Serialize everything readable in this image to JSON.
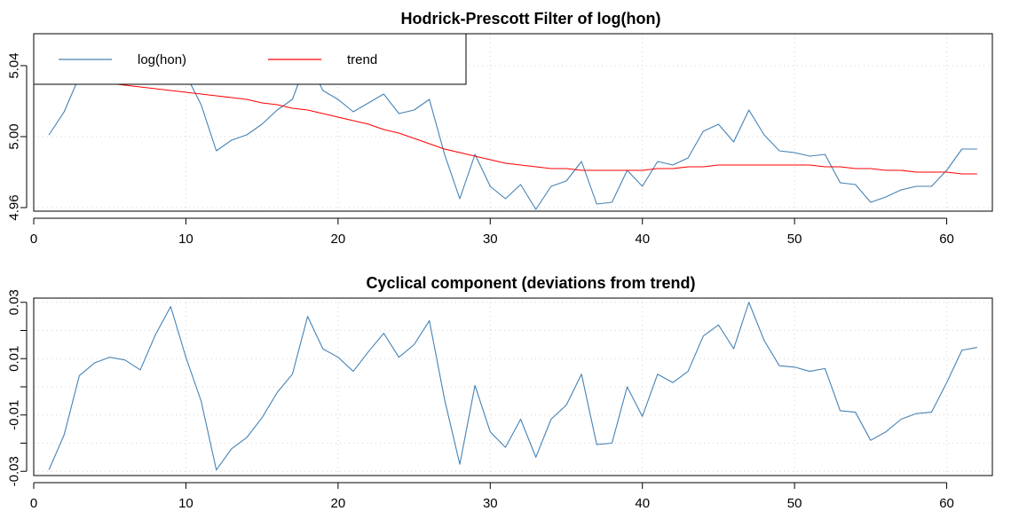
{
  "chart_data": [
    {
      "type": "line",
      "title": "Hodrick-Prescott Filter of log(hon)",
      "xlabel": "",
      "ylabel": "",
      "xlim": [
        0,
        63
      ],
      "ylim": [
        4.958,
        5.058
      ],
      "xticks": [
        0,
        10,
        20,
        30,
        40,
        50,
        60
      ],
      "yticks": [
        4.96,
        5.0,
        5.04
      ],
      "ytick_labels": [
        "4.96",
        "5.00",
        "5.04"
      ],
      "grid": true,
      "legend": {
        "placement": "top-left",
        "boxed": true
      },
      "x": [
        1,
        2,
        3,
        4,
        5,
        6,
        7,
        8,
        9,
        10,
        11,
        12,
        13,
        14,
        15,
        16,
        17,
        18,
        19,
        20,
        21,
        22,
        23,
        24,
        25,
        26,
        27,
        28,
        29,
        30,
        31,
        32,
        33,
        34,
        35,
        36,
        37,
        38,
        39,
        40,
        41,
        42,
        43,
        44,
        45,
        46,
        47,
        48,
        49,
        50,
        51,
        52,
        53,
        54,
        55,
        56,
        57,
        58,
        59,
        60,
        61,
        62
      ],
      "series": [
        {
          "name": "log(hon)",
          "color": "#4682b4",
          "values": [
            5.001,
            5.014,
            5.034,
            5.038,
            5.04,
            5.039,
            5.036,
            5.044,
            5.055,
            5.035,
            5.018,
            4.992,
            4.998,
            5.001,
            5.007,
            5.015,
            5.021,
            5.044,
            5.026,
            5.021,
            5.014,
            5.019,
            5.024,
            5.013,
            5.015,
            5.021,
            4.99,
            4.965,
            4.99,
            4.972,
            4.965,
            4.973,
            4.959,
            4.972,
            4.975,
            4.986,
            4.962,
            4.963,
            4.981,
            4.972,
            4.986,
            4.984,
            4.988,
            5.003,
            5.007,
            4.997,
            5.015,
            5.001,
            4.992,
            4.991,
            4.989,
            4.99,
            4.974,
            4.973,
            4.963,
            4.966,
            4.97,
            4.972,
            4.972,
            4.981,
            4.993,
            4.993
          ]
        },
        {
          "name": "trend",
          "color": "#ff0000",
          "values": [
            5.031,
            5.031,
            5.031,
            5.031,
            5.03,
            5.029,
            5.028,
            5.027,
            5.026,
            5.025,
            5.024,
            5.023,
            5.022,
            5.021,
            5.019,
            5.018,
            5.016,
            5.015,
            5.013,
            5.011,
            5.009,
            5.007,
            5.004,
            5.002,
            4.999,
            4.996,
            4.993,
            4.991,
            4.989,
            4.987,
            4.985,
            4.984,
            4.983,
            4.982,
            4.982,
            4.981,
            4.981,
            4.981,
            4.981,
            4.981,
            4.982,
            4.982,
            4.983,
            4.983,
            4.984,
            4.984,
            4.984,
            4.984,
            4.984,
            4.984,
            4.984,
            4.983,
            4.983,
            4.982,
            4.982,
            4.981,
            4.981,
            4.98,
            4.98,
            4.98,
            4.979,
            4.979
          ]
        }
      ]
    },
    {
      "type": "line",
      "title": "Cyclical component (deviations from trend)",
      "xlabel": "",
      "ylabel": "",
      "xlim": [
        0,
        63
      ],
      "ylim": [
        -0.0315,
        0.0315
      ],
      "xticks": [
        0,
        10,
        20,
        30,
        40,
        50,
        60
      ],
      "yticks": [
        -0.03,
        -0.02,
        -0.01,
        0.0,
        0.01,
        0.02,
        0.03
      ],
      "ytick_labels": [
        "-0.03",
        "",
        "-0.01",
        "",
        "0.01",
        "",
        "0.03"
      ],
      "grid": true,
      "x": [
        1,
        2,
        3,
        4,
        5,
        6,
        7,
        8,
        9,
        10,
        11,
        12,
        13,
        14,
        15,
        16,
        17,
        18,
        19,
        20,
        21,
        22,
        23,
        24,
        25,
        26,
        27,
        28,
        29,
        30,
        31,
        32,
        33,
        34,
        35,
        36,
        37,
        38,
        39,
        40,
        41,
        42,
        43,
        44,
        45,
        46,
        47,
        48,
        49,
        50,
        51,
        52,
        53,
        54,
        55,
        56,
        57,
        58,
        59,
        60,
        61,
        62
      ],
      "series": [
        {
          "color": "#4682b4",
          "values": [
            -0.0295,
            -0.017,
            0.004,
            0.0085,
            0.0105,
            0.0095,
            0.006,
            0.0185,
            0.0285,
            0.0105,
            -0.005,
            -0.0295,
            -0.022,
            -0.018,
            -0.011,
            -0.002,
            0.0045,
            0.025,
            0.0135,
            0.0105,
            0.0055,
            0.0125,
            0.019,
            0.0105,
            0.015,
            0.0235,
            -0.0045,
            -0.0275,
            0.0005,
            -0.016,
            -0.0215,
            -0.0115,
            -0.025,
            -0.0115,
            -0.0065,
            0.0045,
            -0.0205,
            -0.02,
            0.0,
            -0.0105,
            0.0045,
            0.0015,
            0.0055,
            0.018,
            0.022,
            0.0135,
            0.03,
            0.0165,
            0.0075,
            0.007,
            0.0055,
            0.0065,
            -0.0085,
            -0.009,
            -0.019,
            -0.016,
            -0.0115,
            -0.0095,
            -0.009,
            0.0015,
            0.013,
            0.014
          ]
        }
      ]
    }
  ]
}
